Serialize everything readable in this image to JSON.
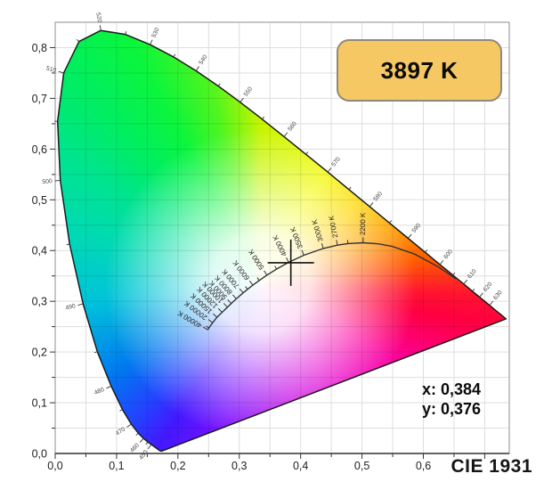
{
  "badge": {
    "label": "3897 K",
    "fill": "#f6c864",
    "border_color": "#8f897b"
  },
  "readout": {
    "x_text": "x: 0,384",
    "y_text": "y: 0,376"
  },
  "footer": {
    "label": "CIE 1931"
  },
  "axes": {
    "x_max": 0.74,
    "y_max": 0.85,
    "grid_step": 0.05,
    "label_step": 0.1,
    "x_tick_labels": [
      "0,0",
      "0,1",
      "0,2",
      "0,3",
      "0,4",
      "0,5",
      "0,6"
    ],
    "y_tick_labels": [
      "0,0",
      "0,1",
      "0,2",
      "0,3",
      "0,4",
      "0,5",
      "0,6",
      "0,7",
      "0,8"
    ]
  },
  "chart_data": {
    "type": "area",
    "subtype": "cie-1931-chromaticity-diagram",
    "title": "CIE 1931",
    "marker": {
      "x": 0.384,
      "y": 0.376,
      "cct_label": "3897 K"
    },
    "white_point": {
      "x": 0.335,
      "y": 0.335
    },
    "spectral_locus": [
      [
        380,
        0.1741,
        0.005
      ],
      [
        390,
        0.1738,
        0.0049
      ],
      [
        400,
        0.1733,
        0.0048
      ],
      [
        410,
        0.1726,
        0.0048
      ],
      [
        420,
        0.1714,
        0.0051
      ],
      [
        430,
        0.1689,
        0.0069
      ],
      [
        440,
        0.1644,
        0.0109
      ],
      [
        450,
        0.1566,
        0.0177
      ],
      [
        455,
        0.151,
        0.0227
      ],
      [
        460,
        0.144,
        0.0297
      ],
      [
        465,
        0.1355,
        0.0399
      ],
      [
        470,
        0.1241,
        0.0578
      ],
      [
        475,
        0.1096,
        0.0868
      ],
      [
        480,
        0.0913,
        0.1327
      ],
      [
        485,
        0.0687,
        0.2007
      ],
      [
        490,
        0.0454,
        0.295
      ],
      [
        495,
        0.0235,
        0.4127
      ],
      [
        500,
        0.0082,
        0.5384
      ],
      [
        505,
        0.0039,
        0.6548
      ],
      [
        510,
        0.0139,
        0.7502
      ],
      [
        515,
        0.0389,
        0.812
      ],
      [
        520,
        0.0743,
        0.8338
      ],
      [
        525,
        0.1142,
        0.8262
      ],
      [
        530,
        0.1547,
        0.8059
      ],
      [
        535,
        0.1929,
        0.7816
      ],
      [
        540,
        0.2296,
        0.7543
      ],
      [
        545,
        0.2658,
        0.7243
      ],
      [
        550,
        0.3016,
        0.6923
      ],
      [
        555,
        0.3373,
        0.6589
      ],
      [
        560,
        0.3731,
        0.6245
      ],
      [
        565,
        0.4087,
        0.5896
      ],
      [
        570,
        0.4441,
        0.5547
      ],
      [
        575,
        0.4788,
        0.5202
      ],
      [
        580,
        0.5125,
        0.4866
      ],
      [
        585,
        0.5448,
        0.4544
      ],
      [
        590,
        0.5752,
        0.4242
      ],
      [
        595,
        0.6029,
        0.3965
      ],
      [
        600,
        0.627,
        0.3725
      ],
      [
        605,
        0.6482,
        0.3514
      ],
      [
        610,
        0.6658,
        0.334
      ],
      [
        615,
        0.6801,
        0.3197
      ],
      [
        620,
        0.6915,
        0.3083
      ],
      [
        630,
        0.7079,
        0.292
      ],
      [
        640,
        0.719,
        0.2809
      ],
      [
        650,
        0.726,
        0.274
      ],
      [
        700,
        0.7347,
        0.2653
      ]
    ],
    "wavelength_labels": [
      {
        "wl": 450,
        "label": "450"
      },
      {
        "wl": 460,
        "label": "460"
      },
      {
        "wl": 470,
        "label": "470"
      },
      {
        "wl": 480,
        "label": "480"
      },
      {
        "wl": 490,
        "label": "490"
      },
      {
        "wl": 500,
        "label": "500"
      },
      {
        "wl": 510,
        "label": "510"
      },
      {
        "wl": 520,
        "label": "520"
      },
      {
        "wl": 530,
        "label": "530"
      },
      {
        "wl": 540,
        "label": "540"
      },
      {
        "wl": 550,
        "label": "550"
      },
      {
        "wl": 560,
        "label": "560"
      },
      {
        "wl": 570,
        "label": "570"
      },
      {
        "wl": 580,
        "label": "580"
      },
      {
        "wl": 590,
        "label": "590"
      },
      {
        "wl": 600,
        "label": "600"
      },
      {
        "wl": 610,
        "label": "610"
      },
      {
        "wl": 620,
        "label": "620"
      },
      {
        "wl": 630,
        "label": "630"
      }
    ],
    "planckian_locus": [
      [
        1000,
        0.6528,
        0.3444
      ],
      [
        1200,
        0.6249,
        0.3674
      ],
      [
        1500,
        0.5857,
        0.3931
      ],
      [
        1800,
        0.5493,
        0.4082
      ],
      [
        2000,
        0.5267,
        0.4133
      ],
      [
        2200,
        0.5018,
        0.4153
      ],
      [
        2500,
        0.477,
        0.4137
      ],
      [
        2700,
        0.4599,
        0.4106
      ],
      [
        3000,
        0.4369,
        0.4041
      ],
      [
        3500,
        0.4053,
        0.3907
      ],
      [
        4000,
        0.3805,
        0.3768
      ],
      [
        4500,
        0.3608,
        0.3636
      ],
      [
        5000,
        0.3451,
        0.3516
      ],
      [
        5500,
        0.3325,
        0.3411
      ],
      [
        6000,
        0.3221,
        0.3318
      ],
      [
        6500,
        0.3135,
        0.3237
      ],
      [
        7000,
        0.3064,
        0.3166
      ],
      [
        8000,
        0.2952,
        0.3048
      ],
      [
        9000,
        0.2869,
        0.2956
      ],
      [
        10000,
        0.2807,
        0.2884
      ],
      [
        12000,
        0.2719,
        0.2782
      ],
      [
        15000,
        0.2637,
        0.2685
      ],
      [
        20000,
        0.2565,
        0.2577
      ],
      [
        30000,
        0.2505,
        0.2474
      ],
      [
        40000,
        0.2487,
        0.2438
      ]
    ],
    "cct_labels": [
      {
        "t": 2200,
        "label": "2200 K"
      },
      {
        "t": 2700,
        "label": "2700 K"
      },
      {
        "t": 3000,
        "label": "3000 K"
      },
      {
        "t": 3500,
        "label": "3500 K"
      },
      {
        "t": 4000,
        "label": "4000 K"
      },
      {
        "t": 5000,
        "label": "5000 K"
      },
      {
        "t": 6000,
        "label": "6000 K"
      },
      {
        "t": 7000,
        "label": "7000 K"
      },
      {
        "t": 8000,
        "label": "8000 K"
      },
      {
        "t": 9000,
        "label": "9000 K"
      },
      {
        "t": 10000,
        "label": "10000 K"
      },
      {
        "t": 12000,
        "label": "12000 K"
      },
      {
        "t": 15000,
        "label": "15000 K"
      },
      {
        "t": 20000,
        "label": "20000 K"
      },
      {
        "t": 40000,
        "label": "40000 K"
      }
    ],
    "cct_minor_ticks": [
      2500,
      4500,
      5500,
      6500,
      30000
    ],
    "render_hints": {
      "legend_position": "none",
      "grid": true,
      "white_core": 55,
      "white_fade": 175,
      "hue_stops": [
        [
          0,
          "#c8f400"
        ],
        [
          30,
          "#f2fa00"
        ],
        [
          52,
          "#ffd400"
        ],
        [
          70,
          "#ff9600"
        ],
        [
          82,
          "#ff5a00"
        ],
        [
          93,
          "#ff1430"
        ],
        [
          100,
          "#ff0040"
        ],
        [
          120,
          "#fb00a0"
        ],
        [
          143,
          "#e800cc"
        ],
        [
          168,
          "#c000e8"
        ],
        [
          195,
          "#7a10ff"
        ],
        [
          212,
          "#4318ff"
        ],
        [
          222,
          "#2540ff"
        ],
        [
          238,
          "#0078f0"
        ],
        [
          264,
          "#00c3da"
        ],
        [
          285,
          "#00d9b4"
        ],
        [
          302,
          "#00e392"
        ],
        [
          318,
          "#00ee60"
        ],
        [
          332,
          "#0cf53c"
        ],
        [
          346,
          "#52f51e"
        ],
        [
          360,
          "#c8f400"
        ]
      ]
    }
  }
}
